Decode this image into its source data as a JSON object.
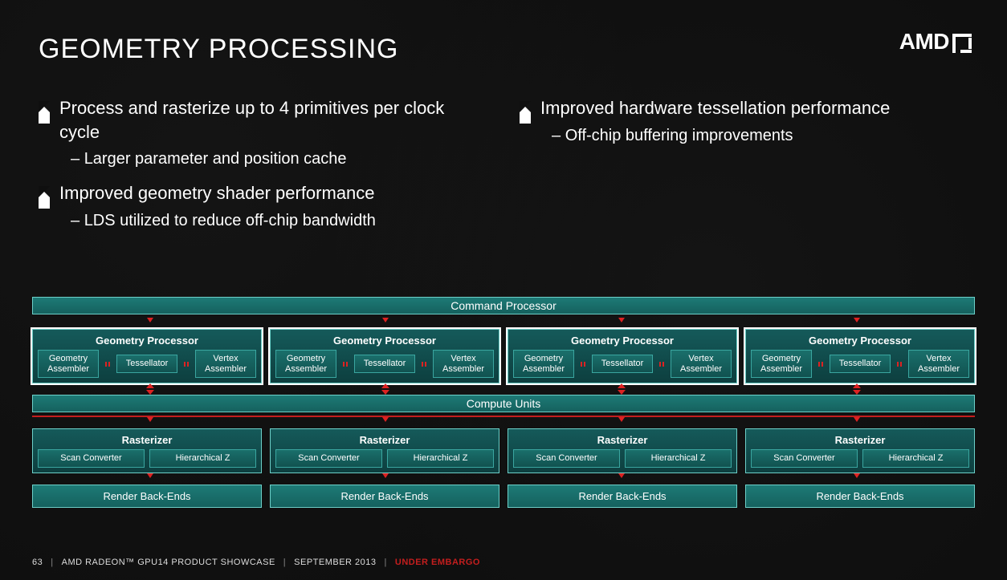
{
  "title": "GEOMETRY PROCESSING",
  "logo_text": "AMD",
  "bullets_left": [
    {
      "text": "Process and rasterize up to 4 primitives per clock cycle",
      "subs": [
        "Larger parameter and position cache"
      ]
    },
    {
      "text": "Improved geometry shader performance",
      "subs": [
        "LDS utilized to reduce off-chip bandwidth"
      ]
    }
  ],
  "bullets_right": [
    {
      "text": "Improved hardware tessellation performance",
      "subs": [
        "Off-chip buffering improvements"
      ]
    }
  ],
  "diagram": {
    "type": "flowchart",
    "background_color": "#0f0f0f",
    "block_border_color": "#6dd0c9",
    "block_fill_dark": "#155a5a",
    "block_fill_mid": "#1d7a76",
    "highlight_stroke": "#ffffff",
    "arrow_color": "#c41e1e",
    "command_processor": "Command Processor",
    "geometry_units": {
      "count": 4,
      "title": "Geometry Processor",
      "sub_blocks": [
        "Geometry Assembler",
        "Tessellator",
        "Vertex Assembler"
      ],
      "highlighted": true
    },
    "compute_units": "Compute Units",
    "rasterizers": {
      "count": 4,
      "title": "Rasterizer",
      "sub_blocks": [
        "Scan Converter",
        "Hierarchical Z"
      ]
    },
    "render_backends": {
      "count": 4,
      "label": "Render Back-Ends"
    }
  },
  "footer": {
    "page": "63",
    "product": "AMD RADEON™ GPU14 PRODUCT SHOWCASE",
    "date": "SEPTEMBER 2013",
    "status": "UNDER EMBARGO"
  },
  "colors": {
    "text": "#ffffff",
    "embargo": "#c41e1e"
  },
  "typography": {
    "title_fontsize": 34,
    "bullet_fontsize": 22,
    "sub_bullet_fontsize": 20,
    "diagram_label_fontsize": 13,
    "footer_fontsize": 11
  }
}
